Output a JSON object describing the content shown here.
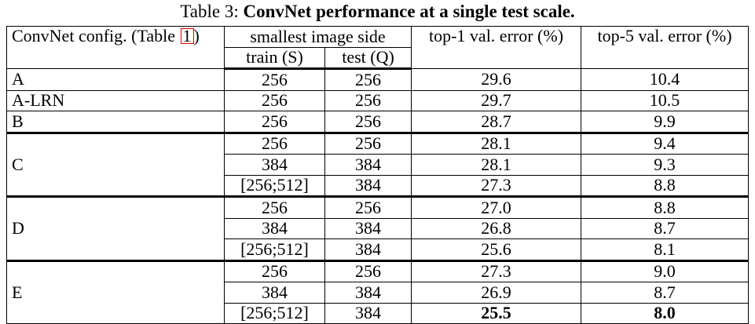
{
  "caption": {
    "prefix": "Table 3: ",
    "title": "ConvNet performance at a single test scale."
  },
  "header": {
    "config_label": "ConvNet config. (Table ",
    "config_ref": "1",
    "config_close": ")",
    "image_side": "smallest image side",
    "train": "train (S)",
    "test": "test (Q)",
    "top1": "top-1 val. error (%)",
    "top5": "top-5 val. error (%)"
  },
  "rows": [
    {
      "config": "A",
      "train": "256",
      "test": "256",
      "top1": "29.6",
      "top5": "10.4"
    },
    {
      "config": "A-LRN",
      "train": "256",
      "test": "256",
      "top1": "29.7",
      "top5": "10.5"
    },
    {
      "config": "B",
      "train": "256",
      "test": "256",
      "top1": "28.7",
      "top5": "9.9"
    },
    {
      "config": "C",
      "train": "256",
      "test": "256",
      "top1": "28.1",
      "top5": "9.4"
    },
    {
      "config": "",
      "train": "384",
      "test": "384",
      "top1": "28.1",
      "top5": "9.3"
    },
    {
      "config": "",
      "train": "[256;512]",
      "test": "384",
      "top1": "27.3",
      "top5": "8.8"
    },
    {
      "config": "D",
      "train": "256",
      "test": "256",
      "top1": "27.0",
      "top5": "8.8"
    },
    {
      "config": "",
      "train": "384",
      "test": "384",
      "top1": "26.8",
      "top5": "8.7"
    },
    {
      "config": "",
      "train": "[256;512]",
      "test": "384",
      "top1": "25.6",
      "top5": "8.1"
    },
    {
      "config": "E",
      "train": "256",
      "test": "256",
      "top1": "27.3",
      "top5": "9.0"
    },
    {
      "config": "",
      "train": "384",
      "test": "384",
      "top1": "26.9",
      "top5": "8.7"
    },
    {
      "config": "",
      "train": "[256;512]",
      "test": "384",
      "top1": "25.5",
      "top5": "8.0"
    }
  ]
}
